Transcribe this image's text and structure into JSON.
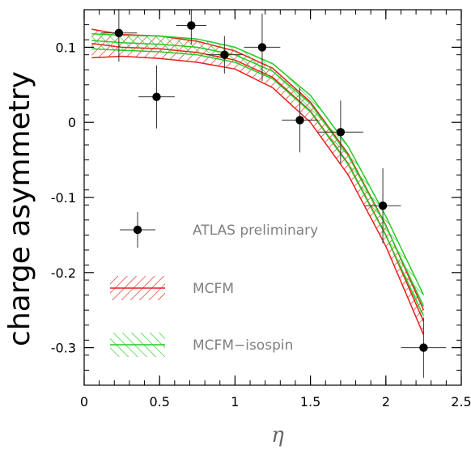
{
  "chart_data": {
    "type": "scatter",
    "title": "",
    "xlabel": "η",
    "ylabel": "charge asymmetry",
    "xlim": [
      0,
      2.5
    ],
    "ylim": [
      -0.35,
      0.15
    ],
    "x_ticks": [
      0,
      0.5,
      1,
      1.5,
      2,
      2.5
    ],
    "x_tick_labels": [
      "0",
      "0.5",
      "1",
      "1.5",
      "2",
      "2.5"
    ],
    "y_ticks": [
      0.1,
      0,
      -0.1,
      -0.2,
      -0.3
    ],
    "y_tick_labels": [
      "0.1",
      "0",
      "-0.1",
      "-0.2",
      "-0.3"
    ],
    "grid": false,
    "legend_position": "bottom-left",
    "colors": {
      "data": "#000000",
      "mcfm": "#e8201c",
      "isospin": "#22cc22",
      "axis": "#000000"
    },
    "series": [
      {
        "name": "ATLAS preliminary",
        "kind": "points",
        "points": [
          {
            "x": 0.23,
            "y": 0.119,
            "xerr": 0.12,
            "yerr": 0.038
          },
          {
            "x": 0.48,
            "y": 0.034,
            "xerr": 0.12,
            "yerr": 0.042
          },
          {
            "x": 0.71,
            "y": 0.129,
            "xerr": 0.1,
            "yerr": 0.025
          },
          {
            "x": 0.93,
            "y": 0.09,
            "xerr": 0.12,
            "yerr": 0.025
          },
          {
            "x": 1.18,
            "y": 0.1,
            "xerr": 0.12,
            "yerr": 0.045
          },
          {
            "x": 1.43,
            "y": 0.003,
            "xerr": 0.12,
            "yerr": 0.043
          },
          {
            "x": 1.7,
            "y": -0.013,
            "xerr": 0.15,
            "yerr": 0.042
          },
          {
            "x": 1.98,
            "y": -0.111,
            "xerr": 0.12,
            "yerr": 0.05
          },
          {
            "x": 2.25,
            "y": -0.3,
            "xerr": 0.15,
            "yerr": 0.04
          }
        ]
      },
      {
        "name": "MCFM",
        "kind": "band",
        "x": [
          0.05,
          0.25,
          0.5,
          0.75,
          1.0,
          1.25,
          1.5,
          1.75,
          2.0,
          2.25
        ],
        "central": [
          0.105,
          0.1,
          0.098,
          0.093,
          0.083,
          0.06,
          0.015,
          -0.055,
          -0.15,
          -0.265
        ],
        "upper": [
          0.124,
          0.117,
          0.115,
          0.108,
          0.095,
          0.072,
          0.027,
          -0.042,
          -0.137,
          -0.25
        ],
        "lower": [
          0.086,
          0.088,
          0.085,
          0.08,
          0.071,
          0.046,
          0.0,
          -0.07,
          -0.165,
          -0.283
        ]
      },
      {
        "name": "MCFM−isospin",
        "kind": "band",
        "x": [
          0.05,
          0.25,
          0.5,
          0.75,
          1.0,
          1.25,
          1.5,
          1.75,
          2.0,
          2.25
        ],
        "central": [
          0.109,
          0.106,
          0.104,
          0.1,
          0.09,
          0.068,
          0.025,
          -0.044,
          -0.138,
          -0.245
        ],
        "upper": [
          0.118,
          0.116,
          0.115,
          0.111,
          0.1,
          0.078,
          0.036,
          -0.032,
          -0.125,
          -0.23
        ],
        "lower": [
          0.098,
          0.096,
          0.094,
          0.09,
          0.08,
          0.058,
          0.014,
          -0.056,
          -0.151,
          -0.258
        ]
      }
    ],
    "legend": [
      {
        "label": "ATLAS preliminary",
        "kind": "points",
        "color": "#000000"
      },
      {
        "label": "MCFM",
        "kind": "band",
        "color": "#e8201c"
      },
      {
        "label": "MCFM−isospin",
        "kind": "band",
        "color": "#22cc22"
      }
    ]
  }
}
